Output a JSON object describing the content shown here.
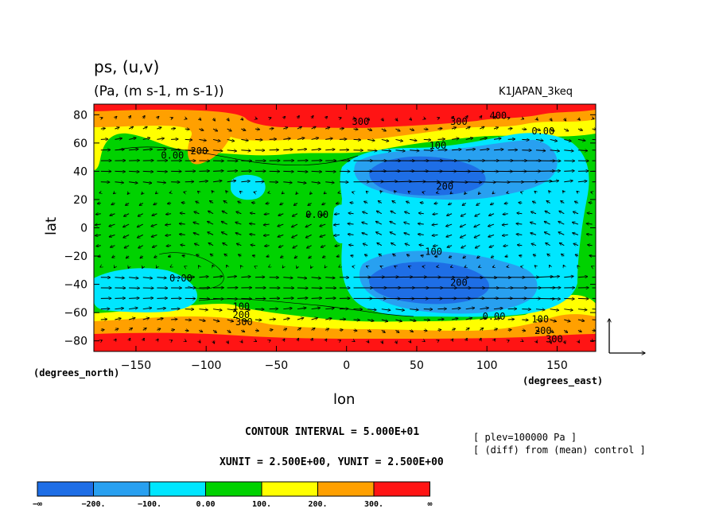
{
  "chart_data": {
    "type": "heatmap",
    "title": "ps, (u,v)",
    "units": "(Pa, (m s-1, m s-1))",
    "run_label": "K1JAPAN_3keq",
    "xlabel": "lon",
    "ylabel": "lat",
    "x_unit_label": "(degrees_east)",
    "y_unit_label": "(degrees_north)",
    "xlim": [
      -180,
      177.5
    ],
    "ylim": [
      -87.5,
      87.5
    ],
    "x_ticks": [
      -150,
      -100,
      -50,
      0,
      50,
      100,
      150
    ],
    "x_tick_labels": [
      "−150",
      "−100",
      "−50",
      "0",
      "50",
      "100",
      "150"
    ],
    "y_ticks": [
      80,
      60,
      40,
      20,
      0,
      -20,
      -40,
      -60,
      -80
    ],
    "y_tick_labels": [
      "80",
      "60",
      "40",
      "20",
      "0",
      "−20",
      "−40",
      "−60",
      "−80"
    ],
    "contour_interval": "CONTOUR INTERVAL = 5.000E+01",
    "vector_units": "XUNIT = 2.500E+00, YUNIT = 2.500E+00",
    "plev_note": "[ plev=100000 Pa ]",
    "diff_note": "[ (diff) from (mean) control ]",
    "colorbar": {
      "bounds": [
        "−∞",
        "−200.",
        "−100.",
        "0.00",
        "100.",
        "200.",
        "300.",
        "∞"
      ],
      "colors": [
        "#1e6ee6",
        "#28a0f0",
        "#00e6ff",
        "#00d200",
        "#ffff00",
        "#ffa000",
        "#ff1414"
      ]
    },
    "contour_labels": [
      {
        "text": "300",
        "lon": 10,
        "lat": 73
      },
      {
        "text": "400",
        "lon": 108,
        "lat": 77
      },
      {
        "text": "300",
        "lon": 80,
        "lat": 73
      },
      {
        "text": "0.00",
        "lon": 140,
        "lat": 66
      },
      {
        "text": "100",
        "lon": 65,
        "lat": 56
      },
      {
        "text": "200",
        "lon": -105,
        "lat": 52
      },
      {
        "text": "0.00",
        "lon": -124,
        "lat": 49
      },
      {
        "text": "200",
        "lon": 70,
        "lat": 27
      },
      {
        "text": "0.00",
        "lon": -21,
        "lat": 7
      },
      {
        "text": "100",
        "lon": 62,
        "lat": -19
      },
      {
        "text": "0.00",
        "lon": -118,
        "lat": -38
      },
      {
        "text": "200",
        "lon": 80,
        "lat": -41
      },
      {
        "text": "100",
        "lon": -75,
        "lat": -58
      },
      {
        "text": "200",
        "lon": -75,
        "lat": -64
      },
      {
        "text": "300",
        "lon": -73,
        "lat": -69
      },
      {
        "text": "0.00",
        "lon": 105,
        "lat": -65
      },
      {
        "text": "100",
        "lon": 138,
        "lat": -67
      },
      {
        "text": "200",
        "lon": 140,
        "lat": -75
      },
      {
        "text": "300",
        "lon": 148,
        "lat": -81
      }
    ],
    "wind_field": "approximate vector field: westerly jets near 40-55N and 40-55S, easterly flow over the equatorial eastern hemisphere"
  }
}
